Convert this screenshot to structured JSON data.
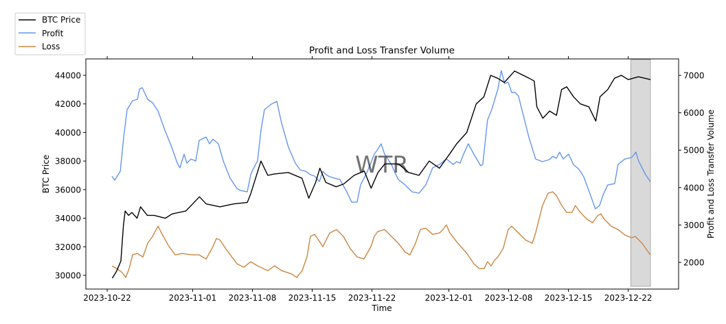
{
  "chart_data": {
    "type": "line",
    "title": "Profit and Loss Transfer Volume",
    "xlabel": "Time",
    "ylabel_left": "BTC Price",
    "ylabel_right": "Profit and Loss Transfer Volume",
    "x_units": "days since 2023-10-22",
    "xlim": [
      -2.5,
      66.9
    ],
    "ylim_left": [
      29040,
      45150
    ],
    "ylim_right": [
      1286,
      7440
    ],
    "x_ticks": [
      {
        "x": 0,
        "label": "2023-10-22"
      },
      {
        "x": 10,
        "label": "2023-11-01"
      },
      {
        "x": 17,
        "label": "2023-11-08"
      },
      {
        "x": 24,
        "label": "2023-11-15"
      },
      {
        "x": 31,
        "label": "2023-11-22"
      },
      {
        "x": 40,
        "label": "2023-12-01"
      },
      {
        "x": 47,
        "label": "2023-12-08"
      },
      {
        "x": 54,
        "label": "2023-12-15"
      },
      {
        "x": 61,
        "label": "2023-12-22"
      }
    ],
    "y_ticks_left": [
      "30000",
      "32000",
      "34000",
      "36000",
      "38000",
      "40000",
      "42000",
      "44000"
    ],
    "y_ticks_right": [
      "2000",
      "3000",
      "4000",
      "5000",
      "6000",
      "7000"
    ],
    "grid": false,
    "legend_placement": "top-left outside",
    "highlight_span": {
      "x0": 61.3,
      "x1": 63.6,
      "color": "#d9d9d9"
    },
    "watermark": "WTR",
    "series": [
      {
        "name": "BTC Price",
        "axis": "left",
        "color": "#000000",
        "x": [
          0.6,
          1.1,
          1.6,
          1.9,
          2.1,
          2.5,
          2.9,
          3.5,
          3.9,
          4.7,
          5.5,
          6.8,
          7.6,
          9.2,
          10.8,
          11.6,
          13.2,
          14.8,
          16.4,
          16.8,
          18.0,
          18.8,
          19.6,
          21.2,
          22.8,
          23.6,
          24.4,
          24.9,
          25.6,
          26.8,
          27.7,
          28.9,
          30.1,
          30.9,
          31.7,
          32.5,
          34.1,
          35.3,
          36.5,
          37.7,
          38.9,
          40.1,
          40.9,
          42.1,
          43.2,
          44.1,
          44.9,
          45.7,
          46.5,
          47.7,
          49.4,
          50.0,
          50.3,
          51.0,
          51.8,
          52.6,
          53.2,
          53.8,
          54.6,
          55.4,
          56.4,
          57.2,
          57.7,
          58.6,
          59.4,
          60.2,
          61.0,
          62.2,
          63.6
        ],
        "y": [
          29800,
          30300,
          31000,
          33500,
          34500,
          34200,
          34400,
          34000,
          34800,
          34200,
          34200,
          34000,
          34300,
          34500,
          35500,
          35000,
          34800,
          35000,
          35100,
          35700,
          38000,
          37000,
          37100,
          37200,
          36800,
          35400,
          36500,
          37500,
          36500,
          36200,
          36400,
          37000,
          37300,
          36100,
          37200,
          37800,
          37800,
          37200,
          37000,
          38000,
          37500,
          38500,
          39200,
          40000,
          42000,
          42500,
          44000,
          43800,
          43500,
          44300,
          43800,
          43600,
          41800,
          41000,
          41500,
          41200,
          43000,
          43200,
          42500,
          42000,
          41800,
          40800,
          42500,
          43000,
          43800,
          44000,
          43700,
          43900,
          43700
        ]
      },
      {
        "name": "Profit",
        "axis": "right",
        "color": "#6495ed",
        "x": [
          0.56,
          0.88,
          1.53,
          1.93,
          2.33,
          2.97,
          3.54,
          3.78,
          4.1,
          4.74,
          5.31,
          5.95,
          6.75,
          7.56,
          8.2,
          8.52,
          9.0,
          9.32,
          9.81,
          10.37,
          10.77,
          11.58,
          11.98,
          12.38,
          13.02,
          13.59,
          14.39,
          15.19,
          15.59,
          16.4,
          16.8,
          17.04,
          17.6,
          18.01,
          18.41,
          19.21,
          19.86,
          20.42,
          21.22,
          22.03,
          22.59,
          23.23,
          23.79,
          24.28,
          24.84,
          25.24,
          25.64,
          26.05,
          26.61,
          27.25,
          28.05,
          28.62,
          29.26,
          29.66,
          30.47,
          31.27,
          31.67,
          32.07,
          32.48,
          33.28,
          33.68,
          34.08,
          34.89,
          35.69,
          36.5,
          37.3,
          38.1,
          38.91,
          39.71,
          40.51,
          40.92,
          41.32,
          41.72,
          42.28,
          42.93,
          43.73,
          43.97,
          44.53,
          45.02,
          45.74,
          46.14,
          46.54,
          46.95,
          47.35,
          47.75,
          48.15,
          48.55,
          49.36,
          50.16,
          50.96,
          51.77,
          52.17,
          52.57,
          52.97,
          53.38,
          54.02,
          54.58,
          55.23,
          55.79,
          56.59,
          57.15,
          57.64,
          58.04,
          58.6,
          59.41,
          59.81,
          60.61,
          61.41,
          61.9,
          62.22,
          62.62,
          63.02,
          63.59
        ],
        "y": [
          4307,
          4197,
          4435,
          5351,
          6084,
          6322,
          6359,
          6634,
          6670,
          6359,
          6267,
          6047,
          5534,
          5076,
          4655,
          4527,
          4893,
          4655,
          4765,
          4710,
          5260,
          5351,
          5168,
          5296,
          5168,
          4710,
          4252,
          3977,
          3922,
          3886,
          4344,
          4472,
          4710,
          5534,
          6084,
          6231,
          6304,
          5718,
          5076,
          4655,
          4472,
          4435,
          4344,
          4307,
          4160,
          4435,
          4344,
          4289,
          4252,
          4215,
          3886,
          3611,
          3611,
          4069,
          4435,
          4893,
          5021,
          5168,
          4893,
          4618,
          4399,
          4215,
          4069,
          3886,
          3849,
          4069,
          4527,
          4618,
          4765,
          4618,
          4692,
          4655,
          4893,
          5168,
          4893,
          4582,
          4618,
          5809,
          6084,
          6634,
          7128,
          6780,
          6817,
          6542,
          6542,
          6450,
          6084,
          5351,
          4765,
          4692,
          4747,
          4838,
          4783,
          4948,
          4765,
          4893,
          4618,
          4490,
          4289,
          3794,
          3428,
          3519,
          3794,
          4069,
          4105,
          4618,
          4765,
          4802,
          4948,
          4710,
          4527,
          4344,
          4160
        ]
      },
      {
        "name": "Loss",
        "axis": "right",
        "color": "#cd853f",
        "x": [
          0.56,
          1.13,
          1.77,
          2.17,
          2.57,
          2.97,
          3.54,
          4.18,
          4.74,
          5.31,
          5.95,
          6.35,
          7.15,
          7.96,
          8.76,
          9.97,
          10.77,
          11.58,
          12.38,
          12.78,
          13.18,
          13.99,
          15.19,
          16.0,
          16.8,
          17.6,
          18.81,
          19.61,
          20.42,
          21.62,
          22.19,
          22.83,
          23.39,
          23.79,
          24.28,
          24.84,
          25.24,
          26.05,
          26.85,
          27.65,
          28.46,
          29.26,
          30.06,
          30.87,
          31.27,
          31.67,
          32.48,
          33.28,
          34.08,
          34.89,
          35.45,
          36.09,
          36.66,
          37.3,
          38.1,
          38.91,
          39.31,
          39.71,
          40.11,
          40.92,
          42.12,
          42.93,
          43.57,
          44.13,
          44.53,
          44.94,
          45.34,
          45.74,
          46.38,
          46.95,
          47.35,
          48.15,
          48.95,
          49.76,
          50.16,
          50.56,
          50.96,
          51.61,
          52.17,
          52.57,
          53.22,
          53.78,
          54.42,
          54.82,
          55.39,
          56.19,
          56.83,
          57.4,
          57.8,
          58.2,
          59.0,
          59.81,
          60.61,
          61.41,
          61.82,
          62.62,
          63.02,
          63.59
        ],
        "y": [
          1907,
          1834,
          1724,
          1596,
          1834,
          2200,
          2237,
          2145,
          2512,
          2695,
          2970,
          2786,
          2457,
          2200,
          2237,
          2200,
          2200,
          2090,
          2420,
          2640,
          2603,
          2328,
          1962,
          1870,
          2017,
          1907,
          1779,
          1907,
          1779,
          1687,
          1596,
          1779,
          2145,
          2695,
          2750,
          2567,
          2420,
          2786,
          2878,
          2695,
          2365,
          2145,
          2090,
          2420,
          2695,
          2823,
          2878,
          2695,
          2512,
          2273,
          2200,
          2512,
          2878,
          2915,
          2750,
          2786,
          2878,
          3006,
          2786,
          2548,
          2237,
          1962,
          1834,
          1834,
          2017,
          1907,
          2054,
          2145,
          2383,
          2878,
          2970,
          2786,
          2603,
          2512,
          2786,
          3153,
          3519,
          3849,
          3886,
          3794,
          3519,
          3336,
          3336,
          3519,
          3336,
          3153,
          3061,
          3244,
          3299,
          3153,
          2970,
          2878,
          2732,
          2658,
          2695,
          2512,
          2383,
          2200
        ]
      }
    ]
  }
}
